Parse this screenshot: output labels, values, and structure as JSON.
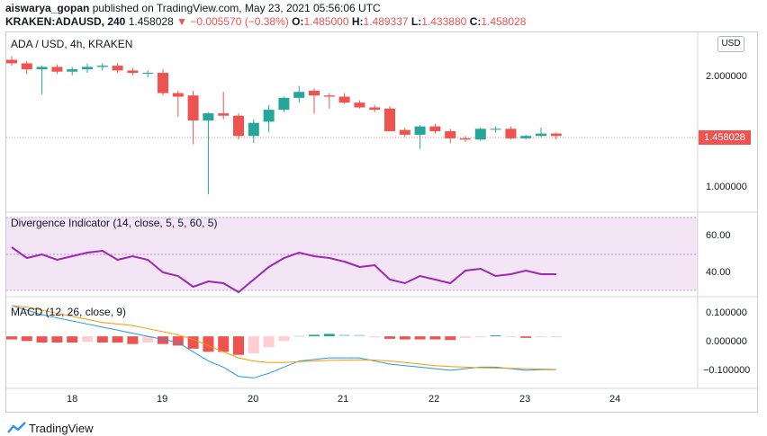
{
  "header": {
    "author": "aiswarya_gopan",
    "published": " published on TradingView.com, May 23, 2021 05:56:06 UTC",
    "symbol": "KRAKEN:ADAUSD, 240",
    "last": "1.458028",
    "change": "▼ −0.005570 (−0.38%)",
    "o_label": "O:",
    "o_value": "1.485000",
    "h_label": "H:",
    "h_value": "1.489337",
    "l_label": "L:",
    "l_value": "1.433880",
    "c_label": "C:",
    "c_value": "1.458028"
  },
  "main_pane": {
    "title": "ADA / USD, 4h, KRAKEN",
    "currency_button": "USD",
    "price_tag": "1.458028",
    "y_labels": [
      "2.000000",
      "1.000000"
    ]
  },
  "div_pane": {
    "title": "Divergence Indicator (14, close, 5, 5, 60, 5)",
    "y_labels": [
      "60.00",
      "40.00"
    ]
  },
  "macd_pane": {
    "title": "MACD (12, 26, close, 9)",
    "y_labels": [
      "0.100000",
      "0.000000",
      "−0.100000"
    ]
  },
  "x_axis": {
    "labels": [
      "18",
      "19",
      "20",
      "21",
      "22",
      "23",
      "24"
    ]
  },
  "footer": {
    "brand": "TradingView"
  },
  "colors": {
    "up": "#26a69a",
    "down": "#ef5350",
    "rsi": "#9c27b0",
    "macd": "#2196f3",
    "signal": "#ff9800"
  },
  "chart_data": {
    "type": "candlestick",
    "x_dates": [
      "17",
      "17",
      "17",
      "17",
      "17",
      "18",
      "18",
      "18",
      "18",
      "18",
      "18",
      "19",
      "19",
      "19",
      "19",
      "19",
      "19",
      "20",
      "20",
      "20",
      "20",
      "20",
      "20",
      "21",
      "21",
      "21",
      "21",
      "21",
      "21",
      "22",
      "22",
      "22",
      "22",
      "22",
      "22",
      "23",
      "23"
    ],
    "candles": [
      {
        "o": 2.1,
        "h": 2.13,
        "l": 2.05,
        "c": 2.07
      },
      {
        "o": 2.07,
        "h": 2.09,
        "l": 1.98,
        "c": 2.02
      },
      {
        "o": 2.02,
        "h": 2.05,
        "l": 1.81,
        "c": 2.04
      },
      {
        "o": 2.04,
        "h": 2.06,
        "l": 1.98,
        "c": 2.0
      },
      {
        "o": 2.0,
        "h": 2.04,
        "l": 1.97,
        "c": 2.02
      },
      {
        "o": 2.02,
        "h": 2.07,
        "l": 1.99,
        "c": 2.04
      },
      {
        "o": 2.04,
        "h": 2.07,
        "l": 2.01,
        "c": 2.05
      },
      {
        "o": 2.05,
        "h": 2.07,
        "l": 1.99,
        "c": 2.01
      },
      {
        "o": 2.01,
        "h": 2.03,
        "l": 1.97,
        "c": 1.99
      },
      {
        "o": 1.99,
        "h": 2.01,
        "l": 1.95,
        "c": 1.99
      },
      {
        "o": 1.99,
        "h": 2.02,
        "l": 1.8,
        "c": 1.82
      },
      {
        "o": 1.82,
        "h": 1.84,
        "l": 1.62,
        "c": 1.79
      },
      {
        "o": 1.8,
        "h": 1.84,
        "l": 1.39,
        "c": 1.59
      },
      {
        "o": 1.59,
        "h": 1.66,
        "l": 0.97,
        "c": 1.65
      },
      {
        "o": 1.65,
        "h": 1.83,
        "l": 1.6,
        "c": 1.63
      },
      {
        "o": 1.63,
        "h": 1.65,
        "l": 1.43,
        "c": 1.46
      },
      {
        "o": 1.46,
        "h": 1.6,
        "l": 1.4,
        "c": 1.57
      },
      {
        "o": 1.58,
        "h": 1.72,
        "l": 1.49,
        "c": 1.68
      },
      {
        "o": 1.68,
        "h": 1.79,
        "l": 1.66,
        "c": 1.78
      },
      {
        "o": 1.78,
        "h": 1.88,
        "l": 1.74,
        "c": 1.83
      },
      {
        "o": 1.84,
        "h": 1.86,
        "l": 1.65,
        "c": 1.8
      },
      {
        "o": 1.8,
        "h": 1.82,
        "l": 1.69,
        "c": 1.79
      },
      {
        "o": 1.79,
        "h": 1.82,
        "l": 1.73,
        "c": 1.74
      },
      {
        "o": 1.74,
        "h": 1.76,
        "l": 1.69,
        "c": 1.7
      },
      {
        "o": 1.7,
        "h": 1.72,
        "l": 1.66,
        "c": 1.68
      },
      {
        "o": 1.69,
        "h": 1.71,
        "l": 1.5,
        "c": 1.5
      },
      {
        "o": 1.51,
        "h": 1.53,
        "l": 1.45,
        "c": 1.47
      },
      {
        "o": 1.47,
        "h": 1.55,
        "l": 1.35,
        "c": 1.54
      },
      {
        "o": 1.54,
        "h": 1.56,
        "l": 1.48,
        "c": 1.5
      },
      {
        "o": 1.5,
        "h": 1.52,
        "l": 1.4,
        "c": 1.44
      },
      {
        "o": 1.44,
        "h": 1.46,
        "l": 1.41,
        "c": 1.43
      },
      {
        "o": 1.43,
        "h": 1.53,
        "l": 1.42,
        "c": 1.52
      },
      {
        "o": 1.52,
        "h": 1.54,
        "l": 1.49,
        "c": 1.52
      },
      {
        "o": 1.52,
        "h": 1.54,
        "l": 1.43,
        "c": 1.44
      },
      {
        "o": 1.44,
        "h": 1.47,
        "l": 1.43,
        "c": 1.46
      },
      {
        "o": 1.46,
        "h": 1.53,
        "l": 1.45,
        "c": 1.48
      },
      {
        "o": 1.48,
        "h": 1.49,
        "l": 1.43,
        "c": 1.46
      }
    ],
    "divergence": [
      54,
      48,
      50,
      47,
      49,
      51,
      52,
      47,
      49,
      47,
      40,
      38,
      32,
      35,
      34,
      29,
      36,
      43,
      48,
      51,
      49,
      48,
      46,
      43,
      44,
      36,
      34,
      38,
      36,
      34,
      41,
      42,
      38,
      39,
      41,
      39,
      39
    ],
    "macd": [
      0.1,
      0.085,
      0.07,
      0.06,
      0.05,
      0.04,
      0.03,
      0.02,
      0.01,
      0.0,
      -0.01,
      -0.02,
      -0.05,
      -0.08,
      -0.1,
      -0.13,
      -0.135,
      -0.12,
      -0.1,
      -0.08,
      -0.075,
      -0.07,
      -0.07,
      -0.07,
      -0.08,
      -0.09,
      -0.095,
      -0.1,
      -0.105,
      -0.11,
      -0.105,
      -0.1,
      -0.1,
      -0.105,
      -0.11,
      -0.108,
      -0.108
    ],
    "signal": [
      0.1,
      0.095,
      0.085,
      0.075,
      0.065,
      0.055,
      0.045,
      0.04,
      0.035,
      0.025,
      0.015,
      0.005,
      -0.01,
      -0.03,
      -0.05,
      -0.07,
      -0.08,
      -0.085,
      -0.085,
      -0.082,
      -0.08,
      -0.078,
      -0.077,
      -0.076,
      -0.077,
      -0.08,
      -0.085,
      -0.09,
      -0.095,
      -0.098,
      -0.1,
      -0.102,
      -0.103,
      -0.104,
      -0.105,
      -0.106,
      -0.107
    ],
    "histogram": [
      -0.01,
      -0.015,
      -0.02,
      -0.02,
      -0.02,
      -0.018,
      -0.02,
      -0.02,
      -0.025,
      -0.02,
      -0.025,
      -0.03,
      -0.04,
      -0.05,
      -0.05,
      -0.06,
      -0.055,
      -0.035,
      -0.015,
      0.002,
      0.005,
      0.008,
      0.006,
      0.005,
      -0.003,
      -0.008,
      -0.01,
      -0.01,
      -0.01,
      -0.012,
      -0.005,
      -0.002,
      0.003,
      -0.001,
      -0.005,
      -0.002,
      -0.001
    ],
    "price_ylim": [
      0.85,
      2.3
    ],
    "div_ylim": [
      20,
      70
    ],
    "macd_ylim": [
      -0.16,
      0.12
    ]
  }
}
